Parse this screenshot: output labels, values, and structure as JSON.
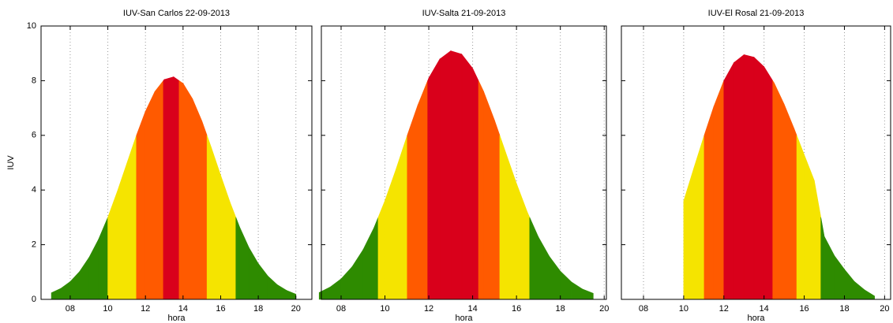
{
  "chart_data": [
    {
      "type": "area",
      "title": "IUV-San Carlos 22-09-2013",
      "x_label": "hora",
      "y_label": "IUV",
      "x": [
        7,
        7.5,
        8,
        8.5,
        9,
        9.5,
        10,
        10.5,
        11,
        11.5,
        12,
        12.5,
        13,
        13.5,
        14,
        14.5,
        15,
        15.5,
        16,
        16.5,
        17,
        17.5,
        18,
        18.5,
        19,
        19.5,
        20
      ],
      "values": [
        0.24,
        0.4,
        0.65,
        1.02,
        1.53,
        2.19,
        3.0,
        3.94,
        4.95,
        5.96,
        6.88,
        7.6,
        8.04,
        8.14,
        7.9,
        7.34,
        6.53,
        5.56,
        4.54,
        3.55,
        2.66,
        1.9,
        1.31,
        0.86,
        0.54,
        0.33,
        0.19
      ],
      "levels": [
        3,
        6,
        8
      ],
      "level_colors": [
        "#2e8b00",
        "#f5e400",
        "#ff5a00",
        "#d9001b"
      ],
      "xlim": [
        6.45,
        20.85
      ],
      "xticks": [
        {
          "value": 8,
          "label": "08"
        },
        10,
        12,
        14,
        16,
        18,
        20
      ],
      "ylim": [
        0,
        10
      ],
      "yticks": [
        0,
        2,
        4,
        6,
        8,
        10
      ],
      "grid": true
    },
    {
      "type": "area",
      "title": "IUV-Salta 21-09-2013",
      "x_label": "hora",
      "x": [
        7,
        7.5,
        8,
        8.5,
        9,
        9.5,
        10,
        10.5,
        11,
        11.5,
        12,
        12.5,
        13,
        13.5,
        14,
        14.5,
        15,
        15.5,
        16,
        16.5,
        17,
        17.5,
        18,
        18.5,
        19,
        19.5
      ],
      "values": [
        0.25,
        0.45,
        0.75,
        1.19,
        1.81,
        2.62,
        3.61,
        4.75,
        5.96,
        7.11,
        8.1,
        8.79,
        9.09,
        8.97,
        8.45,
        7.61,
        6.55,
        5.39,
        4.24,
        3.18,
        2.28,
        1.57,
        1.03,
        0.64,
        0.38,
        0.22
      ],
      "levels": [
        3,
        6,
        8
      ],
      "level_colors": [
        "#2e8b00",
        "#f5e400",
        "#ff5a00",
        "#d9001b"
      ],
      "xlim": [
        7.1,
        20.1
      ],
      "xticks": [
        {
          "value": 8,
          "label": "08"
        },
        10,
        12,
        14,
        16,
        18,
        20
      ],
      "ylim": [
        0,
        10
      ],
      "yticks": [
        0,
        2,
        4,
        6,
        8,
        10
      ],
      "show_ytick_labels": false,
      "grid": true
    },
    {
      "type": "area",
      "title": "IUV-El Rosal 21-09-2013",
      "x_label": "hora",
      "x": [
        10,
        10.5,
        11,
        11.5,
        12,
        12.5,
        13,
        13.5,
        14,
        14.5,
        15,
        15.5,
        16,
        16.5,
        17,
        17.5,
        18,
        18.5,
        19,
        19.5
      ],
      "values": [
        3.6,
        4.79,
        5.95,
        7.06,
        8.0,
        8.66,
        8.95,
        8.86,
        8.51,
        7.92,
        7.14,
        6.24,
        5.29,
        4.35,
        2.3,
        1.6,
        1.1,
        0.65,
        0.35,
        0.12
      ],
      "levels": [
        3,
        6,
        8
      ],
      "level_colors": [
        "#2e8b00",
        "#f5e400",
        "#ff5a00",
        "#d9001b"
      ],
      "xlim": [
        6.9,
        20.3
      ],
      "xticks": [
        {
          "value": 8,
          "label": "08"
        },
        10,
        12,
        14,
        16,
        18,
        20
      ],
      "ylim": [
        0,
        10
      ],
      "yticks": [
        0,
        2,
        4,
        6,
        8,
        10
      ],
      "show_ytick_labels": false,
      "grid": true
    }
  ]
}
